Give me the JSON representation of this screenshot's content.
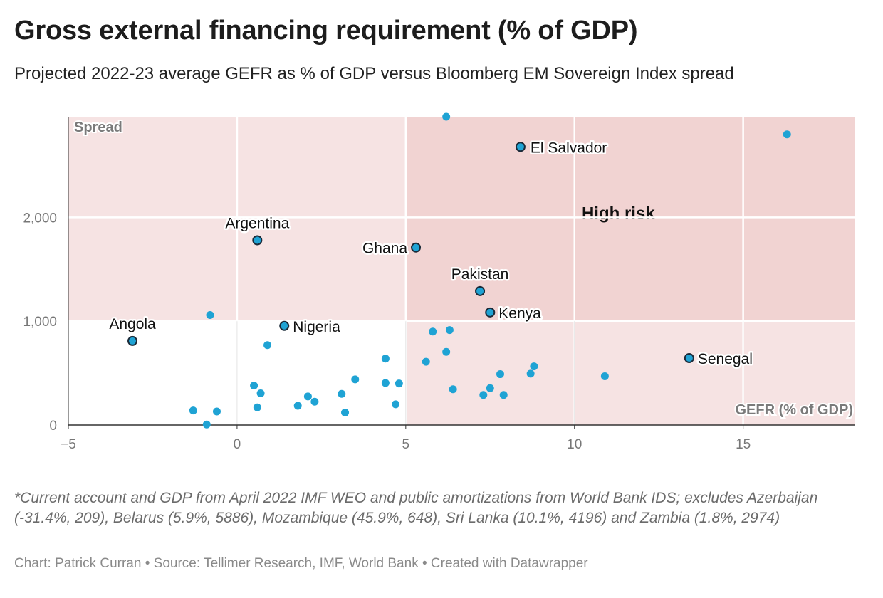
{
  "header": {
    "title": "Gross external financing requirement (% of GDP)",
    "subtitle": "Projected 2022-23 average GEFR as % of GDP versus Bloomberg EM Sovereign Index spread"
  },
  "footer": {
    "notes": "*Current account and GDP from April 2022 IMF WEO and public amortizations from World Bank IDS; excludes Azerbaijan (-31.4%, 209), Belarus (5.9%, 5886), Mozambique (45.9%, 648), Sri Lanka (10.1%, 4196) and Zambia (1.8%, 2974)",
    "credit": "Chart: Patrick Curran • Source: Tellimer Research, IMF, World Bank • Created with Datawrapper"
  },
  "chart_data": {
    "type": "scatter",
    "title": "Gross external financing requirement (% of GDP)",
    "subtitle": "Projected 2022-23 average GEFR as % of GDP versus Bloomberg EM Sovereign Index spread",
    "xlabel": "GEFR (% of GDP)",
    "ylabel": "Spread",
    "xlim": [
      -5,
      18.3
    ],
    "ylim": [
      0,
      2970
    ],
    "x_ticks": [
      -5,
      0,
      5,
      10,
      15
    ],
    "x_tick_labels": [
      "−5",
      "0",
      "5",
      "10",
      "15"
    ],
    "y_ticks": [
      0,
      1000,
      2000
    ],
    "y_tick_labels": [
      "0",
      "1,000",
      "2,000"
    ],
    "grid": true,
    "regions": [
      {
        "x": [
          -5,
          18.3
        ],
        "y": [
          1000,
          2970
        ],
        "color": "#f6e3e3"
      },
      {
        "x": [
          5,
          18.3
        ],
        "y": [
          0,
          1000
        ],
        "color": "#f6e3e3"
      },
      {
        "x": [
          5,
          18.3
        ],
        "y": [
          1000,
          2970
        ],
        "color": "#f1d3d2",
        "label": "High risk"
      }
    ],
    "colors": {
      "point": "#1fa3d4",
      "point_stroke": "#1b2a38",
      "grid": "#e4e4e4",
      "axis": "#333333"
    },
    "labeled_points": [
      {
        "label": "El Salvador",
        "x": 8.4,
        "y": 2680
      },
      {
        "label": "Argentina",
        "x": 0.6,
        "y": 1780
      },
      {
        "label": "Ghana",
        "x": 5.3,
        "y": 1710
      },
      {
        "label": "Pakistan",
        "x": 7.2,
        "y": 1290
      },
      {
        "label": "Kenya",
        "x": 7.5,
        "y": 1085
      },
      {
        "label": "Nigeria",
        "x": 1.4,
        "y": 955
      },
      {
        "label": "Angola",
        "x": -3.1,
        "y": 810
      },
      {
        "label": "Senegal",
        "x": 13.4,
        "y": 645
      }
    ],
    "points": [
      {
        "x": 6.2,
        "y": 2970
      },
      {
        "x": 16.3,
        "y": 2800
      },
      {
        "x": -0.8,
        "y": 1060
      },
      {
        "x": 6.3,
        "y": 915
      },
      {
        "x": 5.8,
        "y": 900
      },
      {
        "x": 0.9,
        "y": 770
      },
      {
        "x": 6.2,
        "y": 705
      },
      {
        "x": 4.4,
        "y": 640
      },
      {
        "x": 5.6,
        "y": 610
      },
      {
        "x": 8.8,
        "y": 565
      },
      {
        "x": 8.7,
        "y": 495
      },
      {
        "x": 7.8,
        "y": 490
      },
      {
        "x": 10.9,
        "y": 470
      },
      {
        "x": 3.5,
        "y": 440
      },
      {
        "x": 4.4,
        "y": 405
      },
      {
        "x": 4.8,
        "y": 400
      },
      {
        "x": 0.5,
        "y": 380
      },
      {
        "x": 7.5,
        "y": 355
      },
      {
        "x": 6.4,
        "y": 345
      },
      {
        "x": 0.7,
        "y": 305
      },
      {
        "x": 3.1,
        "y": 300
      },
      {
        "x": 7.3,
        "y": 290
      },
      {
        "x": 7.9,
        "y": 290
      },
      {
        "x": 2.1,
        "y": 275
      },
      {
        "x": 2.3,
        "y": 225
      },
      {
        "x": 4.7,
        "y": 200
      },
      {
        "x": 1.8,
        "y": 185
      },
      {
        "x": 0.6,
        "y": 170
      },
      {
        "x": -1.3,
        "y": 140
      },
      {
        "x": -0.6,
        "y": 130
      },
      {
        "x": 3.2,
        "y": 120
      },
      {
        "x": -0.9,
        "y": 5
      }
    ]
  }
}
